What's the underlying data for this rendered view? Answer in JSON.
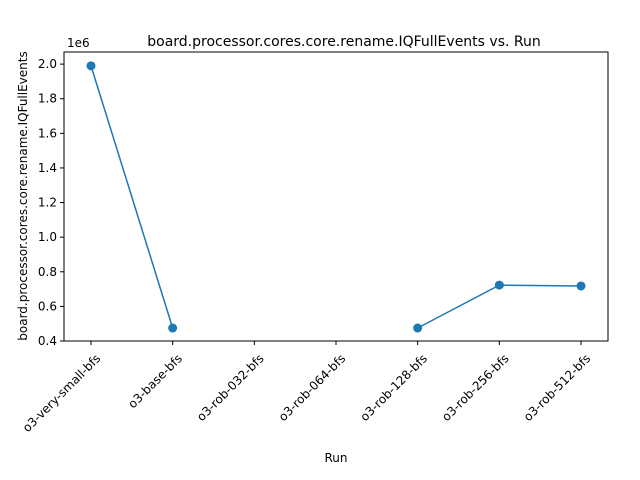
{
  "chart_data": {
    "type": "line",
    "title": "board.processor.cores.core.rename.IQFullEvents vs. Run",
    "xlabel": "Run",
    "ylabel": "board.processor.cores.core.rename.IQFullEvents",
    "y_scale_label": "1e6",
    "categories": [
      "o3-very-small-bfs",
      "o3-base-bfs",
      "o3-rob-032-bfs",
      "o3-rob-064-bfs",
      "o3-rob-128-bfs",
      "o3-rob-256-bfs",
      "o3-rob-512-bfs"
    ],
    "series": [
      {
        "values": [
          1990000,
          475000,
          null,
          null,
          475000,
          723000,
          718000
        ],
        "color": "#1f77b4"
      }
    ],
    "y_ticks": [
      {
        "value": 400000,
        "label": "0.4"
      },
      {
        "value": 600000,
        "label": "0.6"
      },
      {
        "value": 800000,
        "label": "0.8"
      },
      {
        "value": 1000000,
        "label": "1.0"
      },
      {
        "value": 1200000,
        "label": "1.2"
      },
      {
        "value": 1400000,
        "label": "1.4"
      },
      {
        "value": 1600000,
        "label": "1.6"
      },
      {
        "value": 1800000,
        "label": "1.8"
      },
      {
        "value": 2000000,
        "label": "2.0"
      }
    ],
    "ylim": [
      400000,
      2070000
    ],
    "grid": false,
    "x_tick_rotation": 45
  }
}
